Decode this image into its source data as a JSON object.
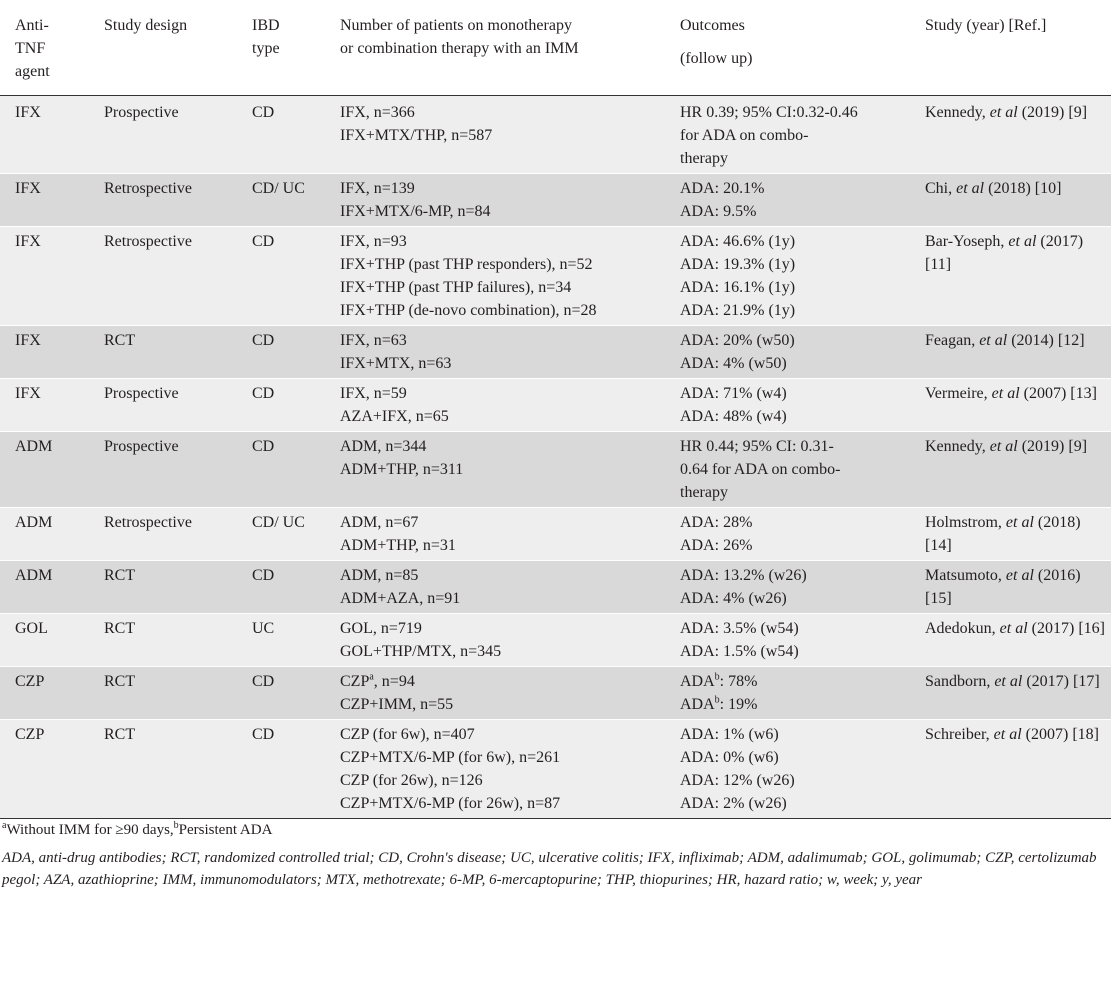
{
  "table": {
    "headers": {
      "agent": [
        "Anti-",
        "TNF",
        "agent"
      ],
      "design": "Study design",
      "ibd": [
        "IBD",
        "type"
      ],
      "patients": [
        "Number of patients on monotherapy",
        "or combination therapy with an IMM"
      ],
      "outcomes": [
        "Outcomes",
        "(follow up)"
      ],
      "study": "Study (year) [Ref.]"
    },
    "rows": [
      {
        "agent": "IFX",
        "design": "Prospective",
        "ibd": "CD",
        "patients": [
          "IFX, n=366",
          "IFX+MTX/THP, n=587"
        ],
        "outcomes": [
          "HR 0.39; 95% CI:0.32-0.46",
          "for ADA on combo-",
          "therapy"
        ],
        "author": "Kennedy,",
        "etal": "et al",
        "ref": "(2019) [9]"
      },
      {
        "agent": "IFX",
        "design": "Retrospective",
        "ibd": "CD/ UC",
        "patients": [
          "IFX, n=139",
          "IFX+MTX/6-MP, n=84"
        ],
        "outcomes": [
          "ADA: 20.1%",
          "ADA: 9.5%"
        ],
        "author": "Chi,",
        "etal": "et al",
        "ref": "(2018) [10]"
      },
      {
        "agent": "IFX",
        "design": "Retrospective",
        "ibd": "CD",
        "patients": [
          "IFX, n=93",
          "IFX+THP (past THP responders), n=52",
          "IFX+THP (past THP failures), n=34",
          "IFX+THP (de-novo combination), n=28"
        ],
        "outcomes": [
          "ADA: 46.6% (1y)",
          "ADA: 19.3% (1y)",
          "ADA: 16.1% (1y)",
          "ADA: 21.9% (1y)"
        ],
        "author": "Bar-Yoseph,",
        "etal": "et al",
        "ref": "(2017) [11]"
      },
      {
        "agent": "IFX",
        "design": "RCT",
        "ibd": "CD",
        "patients": [
          "IFX, n=63",
          "IFX+MTX, n=63"
        ],
        "outcomes": [
          "ADA: 20% (w50)",
          "ADA: 4% (w50)"
        ],
        "author": "Feagan,",
        "etal": "et al",
        "ref": "(2014) [12]"
      },
      {
        "agent": "IFX",
        "design": "Prospective",
        "ibd": "CD",
        "patients": [
          "IFX, n=59",
          "AZA+IFX, n=65"
        ],
        "outcomes": [
          "ADA: 71% (w4)",
          "ADA: 48% (w4)"
        ],
        "author": "Vermeire,",
        "etal": "et al",
        "ref": "(2007) [13]"
      },
      {
        "agent": "ADM",
        "design": "Prospective",
        "ibd": "CD",
        "patients": [
          "ADM, n=344",
          "ADM+THP, n=311"
        ],
        "outcomes": [
          "HR 0.44; 95% CI: 0.31-",
          "0.64 for ADA on combo-",
          "therapy"
        ],
        "author": "Kennedy,",
        "etal": "et al",
        "ref": "(2019) [9]"
      },
      {
        "agent": "ADM",
        "design": "Retrospective",
        "ibd": "CD/ UC",
        "patients": [
          "ADM, n=67",
          "ADM+THP, n=31"
        ],
        "outcomes": [
          "ADA: 28%",
          "ADA: 26%"
        ],
        "author": "Holmstrom,",
        "etal": "et al",
        "ref": "(2018) [14]"
      },
      {
        "agent": "ADM",
        "design": "RCT",
        "ibd": "CD",
        "patients": [
          "ADM, n=85",
          "ADM+AZA, n=91"
        ],
        "outcomes": [
          "ADA: 13.2% (w26)",
          "ADA: 4% (w26)"
        ],
        "author": "Matsumoto,",
        "etal": "et al",
        "ref": "(2016) [15]"
      },
      {
        "agent": "GOL",
        "design": "RCT",
        "ibd": "UC",
        "patients": [
          "GOL, n=719",
          "GOL+THP/MTX, n=345"
        ],
        "outcomes": [
          "ADA: 3.5% (w54)",
          "ADA: 1.5% (w54)"
        ],
        "author": "Adedokun,",
        "etal": "et al",
        "ref": "(2017) [16]"
      },
      {
        "agent": "CZP",
        "design": "RCT",
        "ibd": "CD",
        "patients": [
          "CZPᵃ, n=94",
          "CZP+IMM, n=55"
        ],
        "outcomes": [
          "ADAᵇ: 78%",
          "ADAᵇ: 19%"
        ],
        "author": "Sandborn,",
        "etal": "et al",
        "ref": "(2017) [17]"
      },
      {
        "agent": "CZP",
        "design": "RCT",
        "ibd": "CD",
        "patients": [
          "CZP (for 6w), n=407",
          "CZP+MTX/6-MP (for 6w), n=261",
          "CZP (for 26w), n=126",
          "CZP+MTX/6-MP (for 26w), n=87"
        ],
        "outcomes": [
          "ADA: 1% (w6)",
          "ADA: 0% (w6)",
          "ADA: 12% (w26)",
          "ADA: 2% (w26)"
        ],
        "author": "Schreiber,",
        "etal": "et al",
        "ref": "(2007) [18]"
      }
    ]
  },
  "footnotes": {
    "marks": "ᵃWithout IMM for ≥90 days, ᵇPersistent ADA",
    "abbreviations": "ADA, anti-drug antibodies; RCT, randomized controlled trial; CD, Crohn's disease; UC, ulcerative colitis; IFX, infliximab; ADM, adalimumab; GOL, golimumab; CZP, certolizumab pegol; AZA, azathioprine; IMM, immunomodulators; MTX, methotrexate; 6-MP, 6-mercaptopurine; THP, thiopurines; HR, hazard ratio; w, week; y, year"
  }
}
